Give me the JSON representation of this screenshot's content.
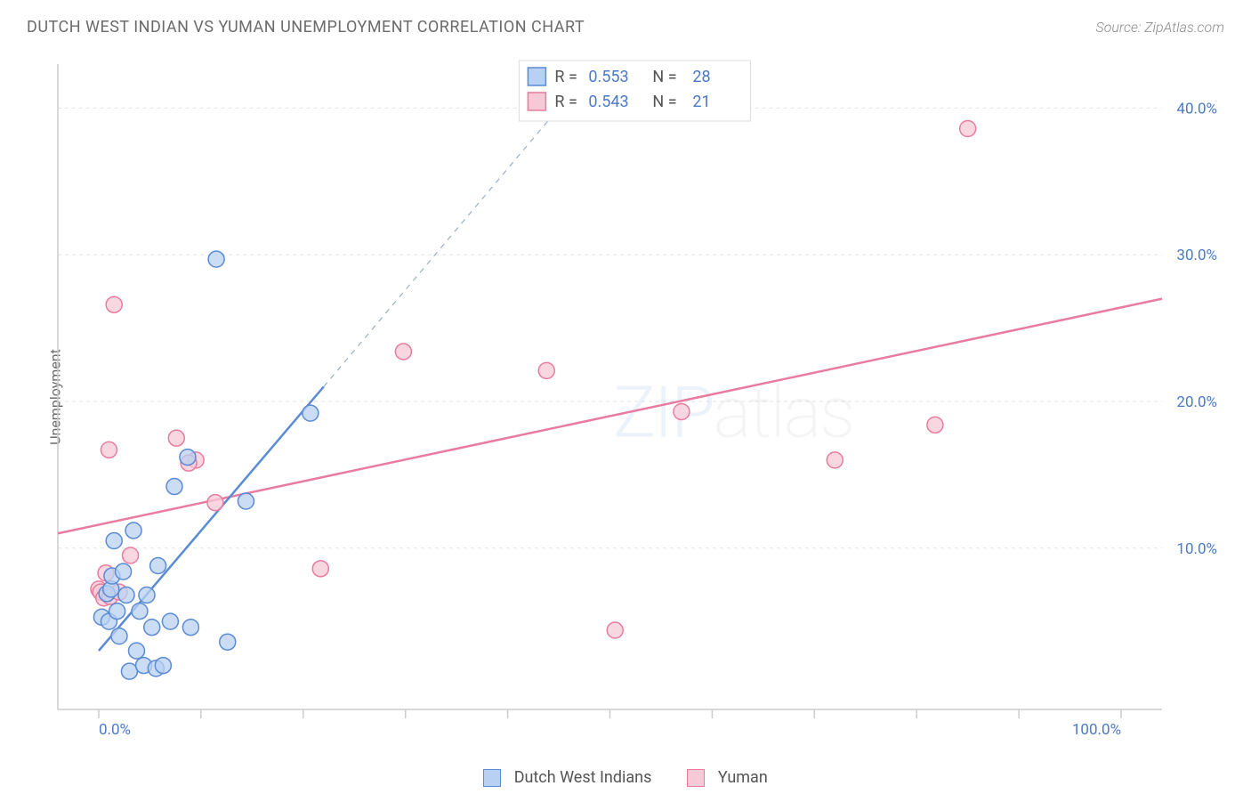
{
  "title": "DUTCH WEST INDIAN VS YUMAN UNEMPLOYMENT CORRELATION CHART",
  "source": "Source: ZipAtlas.com",
  "y_axis_label": "Unemployment",
  "watermark_heavy": "ZIP",
  "watermark_light": "atlas",
  "chart": {
    "type": "scatter",
    "background": "#ffffff",
    "grid_color": "#e3e3e3",
    "axis_color": "#cccccc",
    "xlim": [
      -4,
      104
    ],
    "ylim": [
      -1,
      43
    ],
    "x_ticks": [
      0,
      10,
      20,
      30,
      40,
      50,
      60,
      70,
      80,
      90,
      100
    ],
    "x_tick_labels": [
      "0.0%",
      "",
      "",
      "",
      "",
      "",
      "",
      "",
      "",
      "",
      "100.0%"
    ],
    "y_gridlines": [
      10,
      20,
      30,
      40
    ],
    "y_tick_labels": [
      "10.0%",
      "20.0%",
      "30.0%",
      "40.0%"
    ],
    "marker_radius": 9,
    "marker_stroke_width": 1.5,
    "trend_line_width": 2.5,
    "dashed_line_width": 1.2
  },
  "series": [
    {
      "key": "dwi",
      "name": "Dutch West Indians",
      "fill": "#b8d1f2",
      "stroke": "#5a8bd6",
      "r_value": "0.553",
      "n_value": "28",
      "points": [
        [
          0.3,
          5.3
        ],
        [
          0.8,
          6.9
        ],
        [
          1.0,
          5.0
        ],
        [
          1.2,
          7.2
        ],
        [
          1.3,
          8.1
        ],
        [
          1.5,
          10.5
        ],
        [
          1.8,
          5.7
        ],
        [
          2.0,
          4.0
        ],
        [
          2.4,
          8.4
        ],
        [
          2.7,
          6.8
        ],
        [
          3.0,
          1.6
        ],
        [
          3.4,
          11.2
        ],
        [
          3.7,
          3.0
        ],
        [
          4.0,
          5.7
        ],
        [
          4.4,
          2.0
        ],
        [
          4.7,
          6.8
        ],
        [
          5.2,
          4.6
        ],
        [
          5.6,
          1.8
        ],
        [
          6.3,
          2.0
        ],
        [
          7.0,
          5.0
        ],
        [
          7.4,
          14.2
        ],
        [
          8.7,
          16.2
        ],
        [
          9.0,
          4.6
        ],
        [
          11.5,
          29.7
        ],
        [
          12.6,
          3.6
        ],
        [
          14.4,
          13.2
        ],
        [
          20.7,
          19.2
        ],
        [
          5.8,
          8.8
        ]
      ],
      "trend_x1": 0.0,
      "trend_y1": 3.0,
      "trend_x2": 22.0,
      "trend_y2": 21.0,
      "dashed_to_x": 45.0,
      "dashed_to_y": 40.0
    },
    {
      "key": "yuman",
      "name": "Yuman",
      "fill": "#f7c9d7",
      "stroke": "#e97c9e",
      "r_value": "0.543",
      "n_value": "21",
      "points": [
        [
          0.0,
          7.2
        ],
        [
          0.2,
          7.0
        ],
        [
          0.5,
          6.6
        ],
        [
          0.7,
          8.3
        ],
        [
          1.0,
          16.7
        ],
        [
          1.1,
          6.7
        ],
        [
          1.5,
          26.6
        ],
        [
          3.1,
          9.5
        ],
        [
          7.6,
          17.5
        ],
        [
          9.5,
          16.0
        ],
        [
          11.4,
          13.1
        ],
        [
          21.7,
          8.6
        ],
        [
          29.8,
          23.4
        ],
        [
          43.8,
          22.1
        ],
        [
          50.5,
          4.4
        ],
        [
          57.0,
          19.3
        ],
        [
          72.0,
          16.0
        ],
        [
          81.8,
          18.4
        ],
        [
          85.0,
          38.6
        ],
        [
          2.0,
          7.0
        ],
        [
          8.8,
          15.8
        ]
      ],
      "trend_x1": -4.0,
      "trend_y1": 11.0,
      "trend_x2": 104.0,
      "trend_y2": 27.0,
      "dashed_to_x": null,
      "dashed_to_y": null
    }
  ],
  "rn_box": {
    "r_label": "R =",
    "n_label": "N ="
  },
  "colors": {
    "value_text": "#4a7ac7",
    "label_text": "#555555"
  }
}
